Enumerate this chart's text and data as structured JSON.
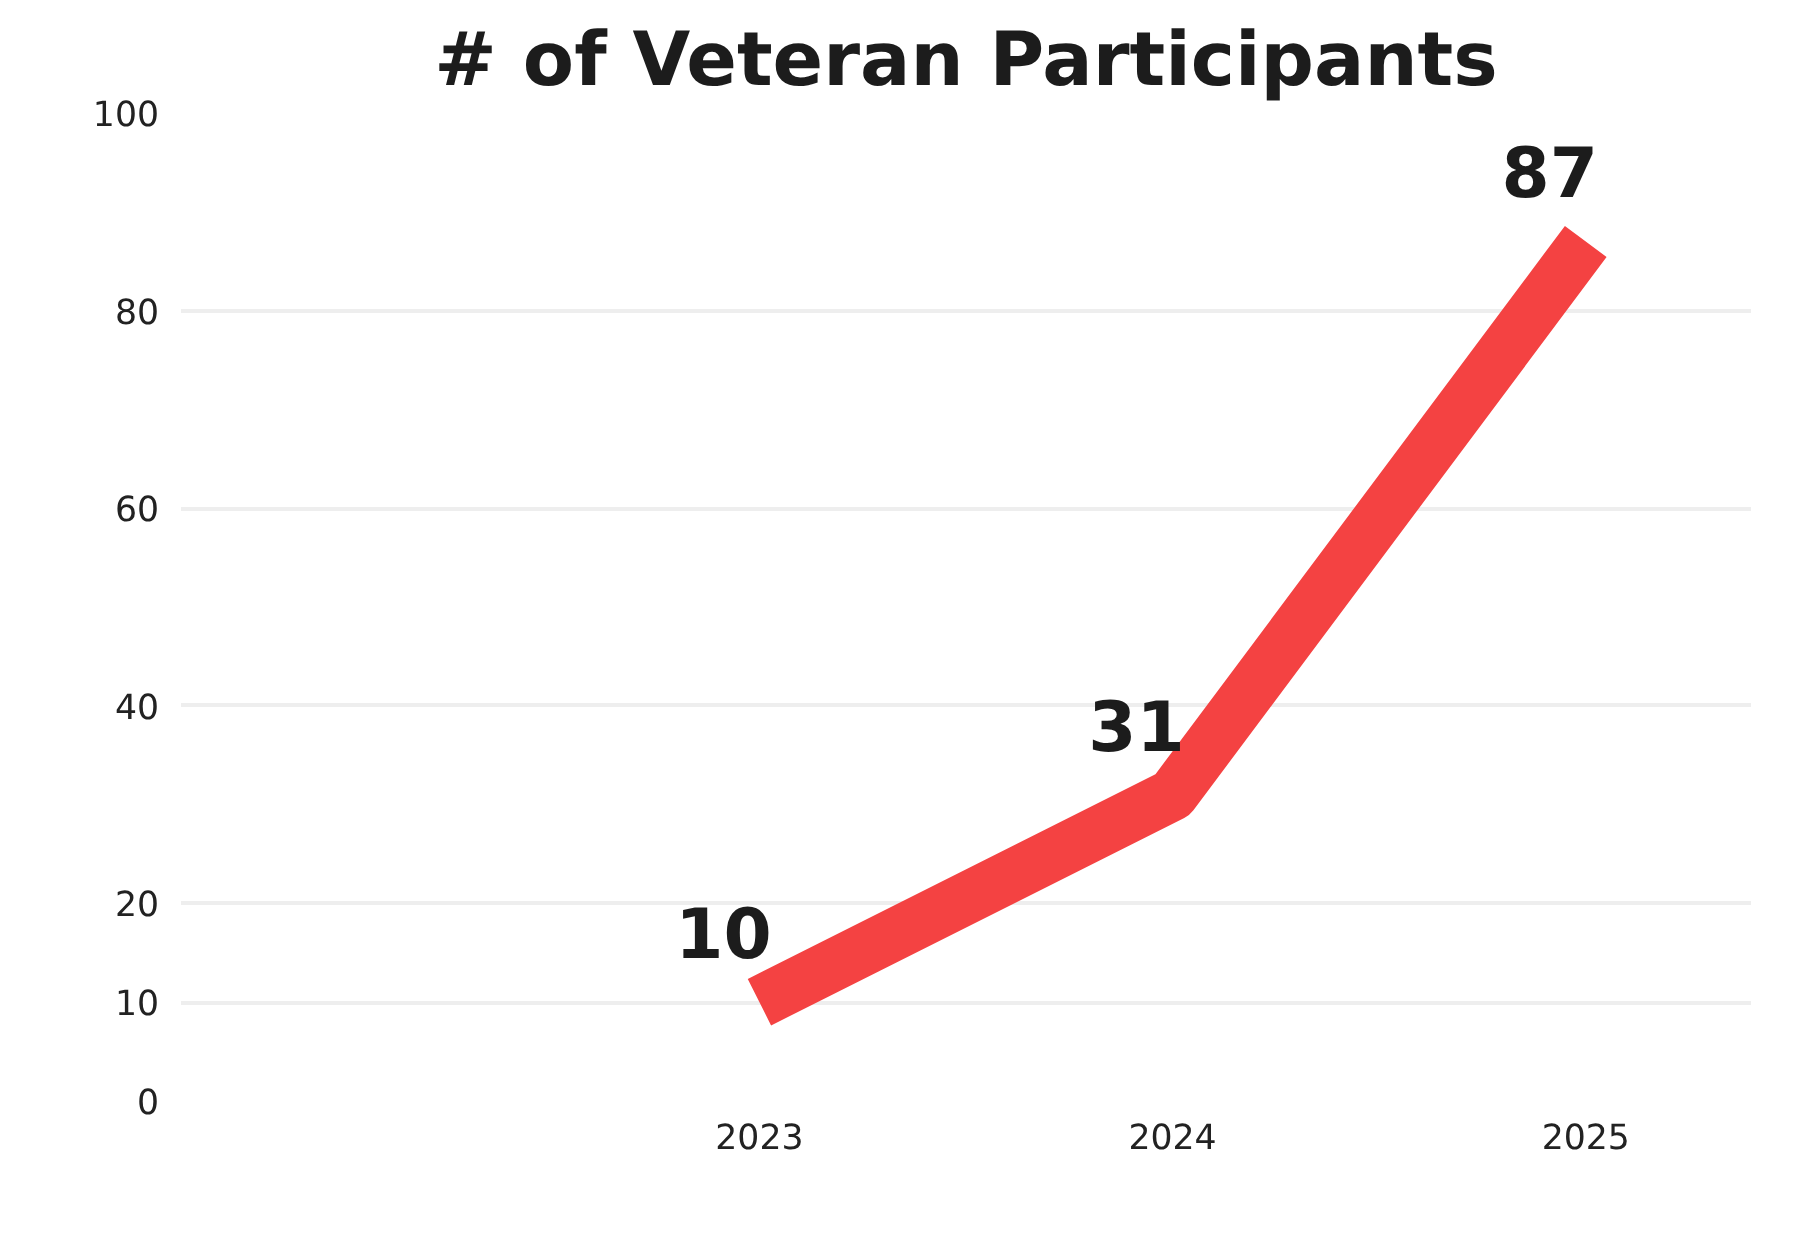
{
  "chart_data": {
    "type": "line",
    "title": "# of Veteran Participants",
    "categories": [
      "2023",
      "2024",
      "2025"
    ],
    "series": [
      {
        "color": "#f44242",
        "values": [
          10,
          31,
          87
        ]
      }
    ],
    "data_labels": true,
    "ylim": [
      0,
      100
    ],
    "yticks": [
      0,
      10,
      20,
      40,
      60,
      80,
      100
    ],
    "grid": "y",
    "marker": "none",
    "line_style": "solid"
  }
}
